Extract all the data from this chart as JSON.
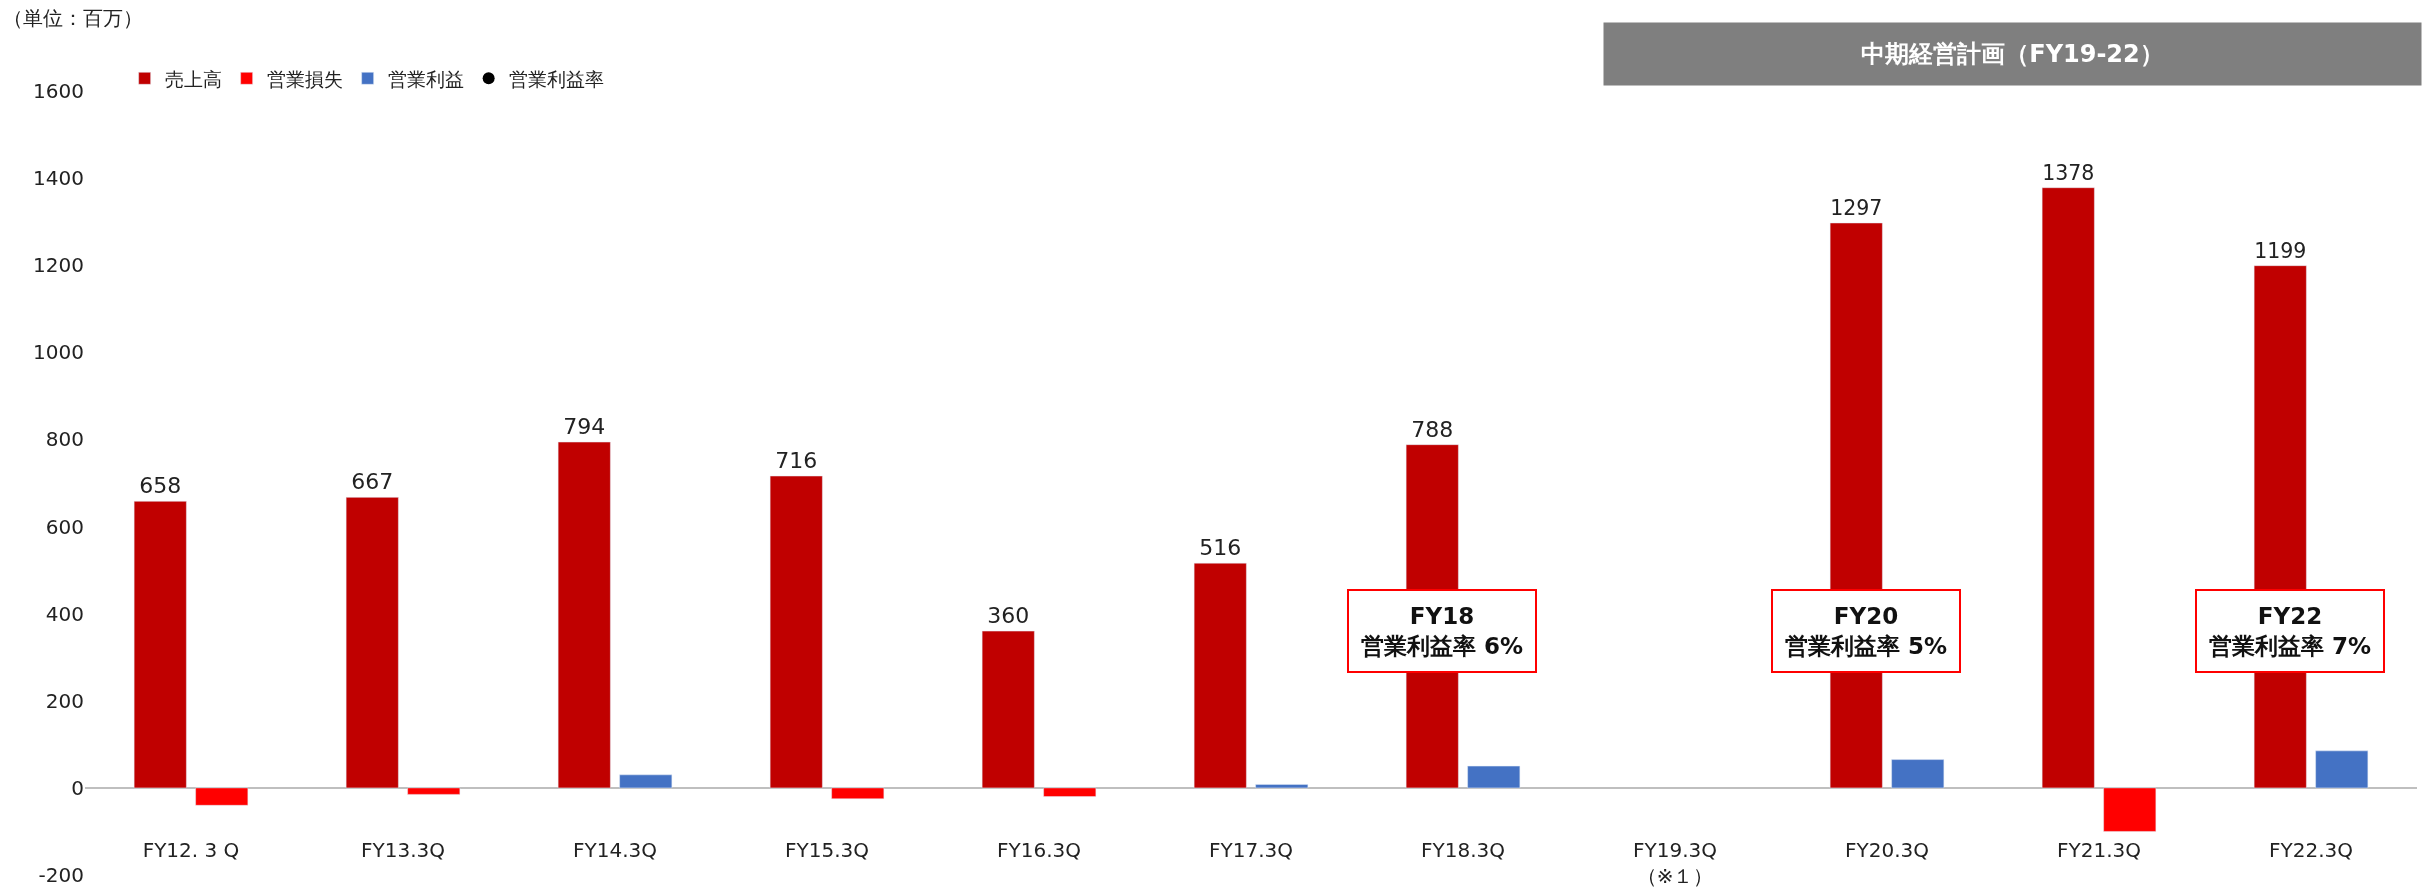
{
  "chart_data": {
    "type": "bar",
    "categories": [
      "FY12. 3 Q",
      "FY13.3Q",
      "FY14.3Q",
      "FY15.3Q",
      "FY16.3Q",
      "FY17.3Q",
      "FY18.3Q",
      "FY19.3Q\n（※１）",
      "FY20.3Q",
      "FY21.3Q",
      "FY22.3Q"
    ],
    "series": [
      {
        "name": "売上高",
        "color": "#c00000",
        "values": [
          658,
          667,
          794,
          716,
          360,
          516,
          788,
          null,
          1297,
          1378,
          1199
        ],
        "value_labels": [
          "658",
          "667",
          "794",
          "716",
          "360",
          "516",
          "788",
          null,
          "1297",
          "1378",
          "1199"
        ]
      },
      {
        "name": "営業損失",
        "color": "#ff0000",
        "values": [
          -40,
          -15,
          null,
          -25,
          -20,
          null,
          null,
          null,
          null,
          -100,
          null
        ]
      },
      {
        "name": "営業利益",
        "color": "#4472c4",
        "values": [
          null,
          null,
          30,
          null,
          null,
          8,
          50,
          null,
          65,
          null,
          85
        ]
      },
      {
        "name": "営業利益率",
        "type": "scatter",
        "color": "#000000",
        "values": [
          null,
          null,
          null,
          null,
          null,
          null,
          null,
          null,
          null,
          null,
          null
        ]
      }
    ],
    "ylim": [
      -200,
      1600
    ],
    "yticks": [
      -200,
      0,
      200,
      400,
      600,
      800,
      1000,
      1200,
      1400,
      1600
    ],
    "legend": "top left",
    "annotations": [
      "（単位：百万）",
      "中期経営計画（FY19-22）",
      {
        "text": "FY18\n営業利益率 6%",
        "x": "FY18.3Q",
        "y": 360
      },
      {
        "text": "FY20\n営業利益率 5%",
        "x": "FY20.3Q",
        "y": 360
      },
      {
        "text": "FY22\n営業利益率 7%",
        "x": "FY22.3Q",
        "y": 360
      }
    ]
  }
}
